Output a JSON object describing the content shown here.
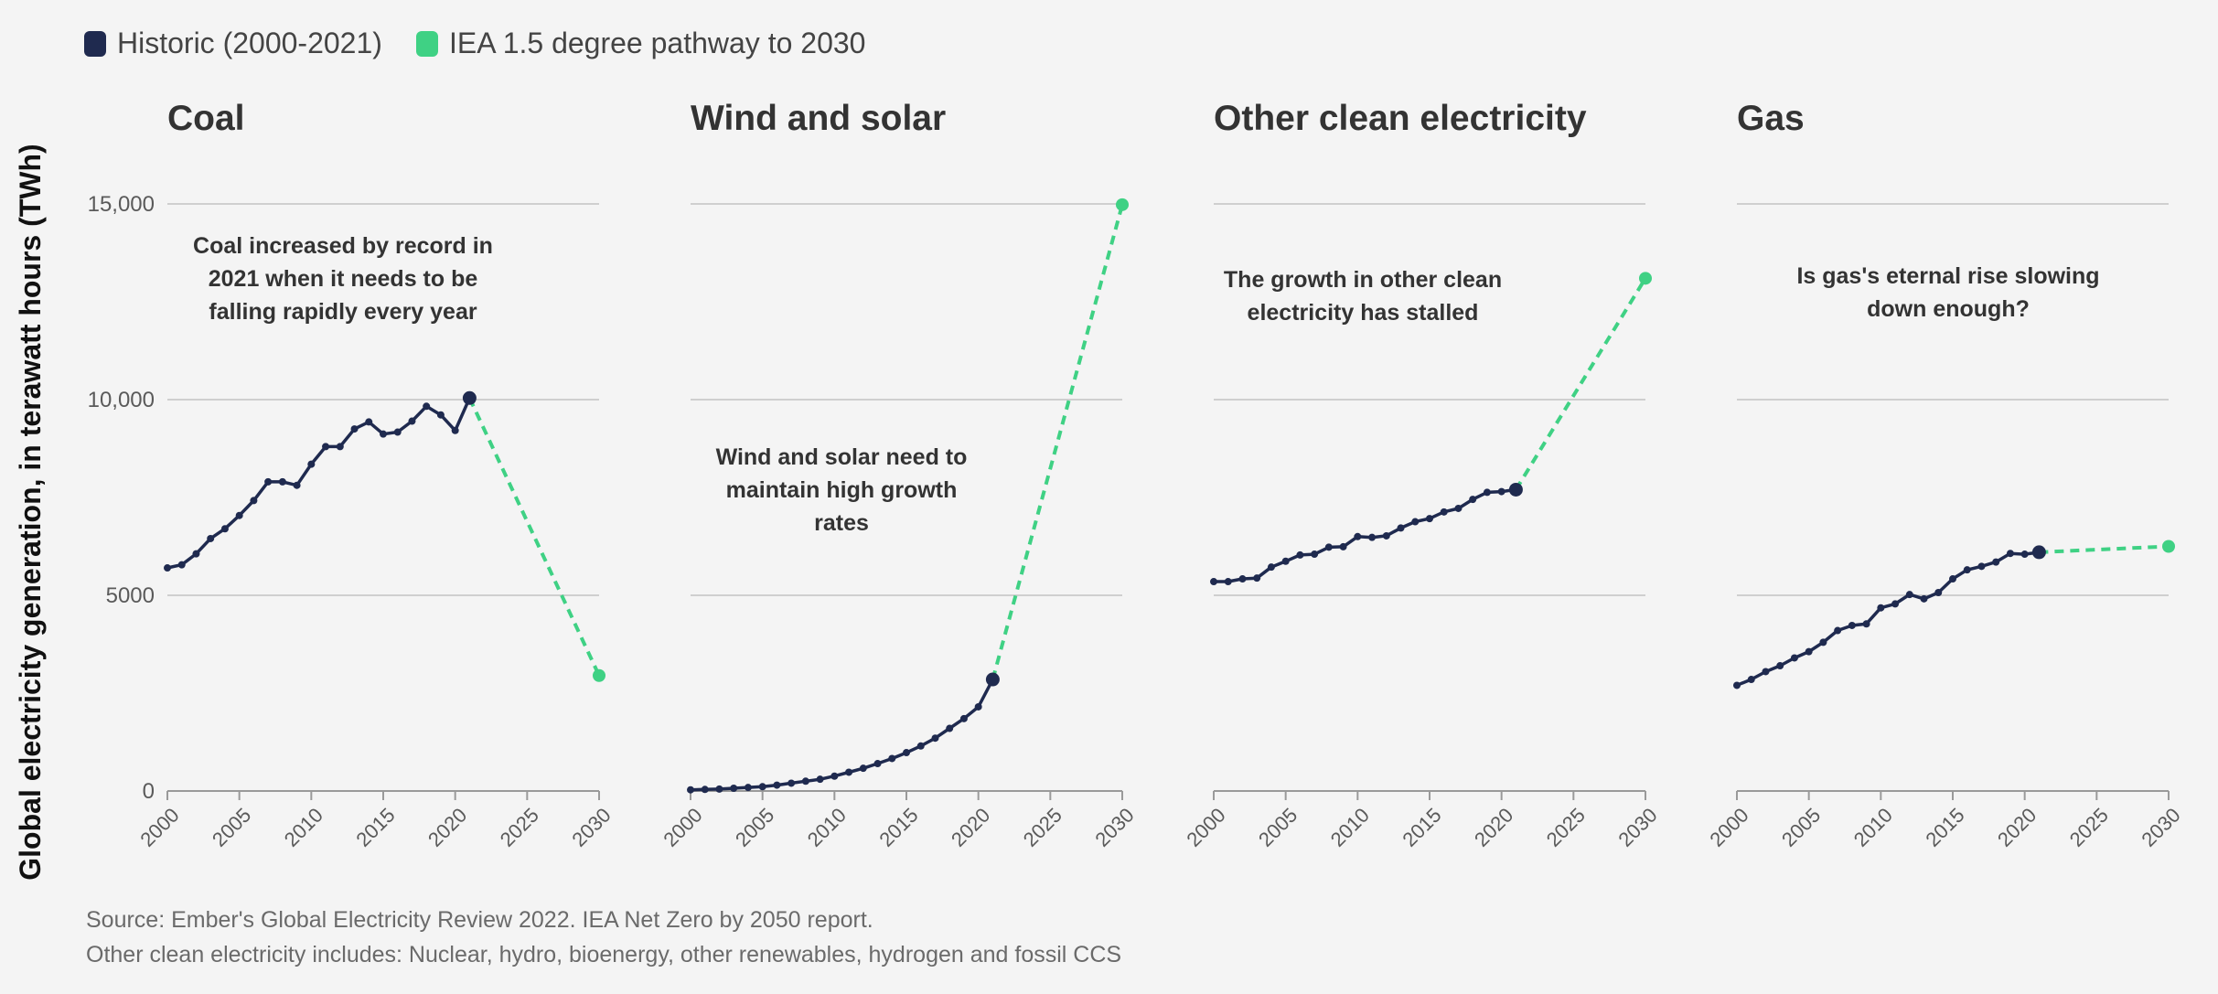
{
  "legend": [
    {
      "label": "Historic (2000-2021)",
      "color": "#1f2a4f"
    },
    {
      "label": "IEA 1.5 degree pathway to 2030",
      "color": "#3fd184"
    }
  ],
  "ylabel": "Global electricity generation, in terawatt hours (TWh)",
  "source_lines": [
    "Source: Ember's Global Electricity Review 2022. IEA Net Zero by 2050 report.",
    "Other clean electricity includes: Nuclear, hydro, bioenergy, other renewables, hydrogen and fossil CCS"
  ],
  "chart_data": [
    {
      "type": "line",
      "title": "Coal",
      "annotation": [
        "Coal increased by record in",
        "2021 when it needs to be",
        "falling rapidly every year"
      ],
      "xlim": [
        2000,
        2030
      ],
      "ylim": [
        0,
        15000
      ],
      "yticks": [
        {
          "value": 0,
          "label": "0"
        },
        {
          "value": 5000,
          "label": "5000"
        },
        {
          "value": 10000,
          "label": "10,000"
        },
        {
          "value": 15000,
          "label": "15,000"
        }
      ],
      "xticks": [
        "2000",
        "2005",
        "2010",
        "2015",
        "2020",
        "2025",
        "2030"
      ],
      "grid": true,
      "historic": {
        "x": [
          2000,
          2001,
          2002,
          2003,
          2004,
          2005,
          2006,
          2007,
          2008,
          2009,
          2010,
          2011,
          2012,
          2013,
          2014,
          2015,
          2016,
          2017,
          2018,
          2019,
          2020,
          2021
        ],
        "y": [
          5700,
          5780,
          6060,
          6450,
          6700,
          7040,
          7420,
          7900,
          7900,
          7810,
          8350,
          8800,
          8800,
          9250,
          9430,
          9120,
          9170,
          9450,
          9830,
          9610,
          9210,
          10040
        ]
      },
      "pathway": {
        "x": [
          2021,
          2030
        ],
        "y": [
          10040,
          2950
        ]
      }
    },
    {
      "type": "line",
      "title": "Wind and solar",
      "annotation": [
        "Wind and solar need to",
        "maintain high growth",
        "rates"
      ],
      "xlim": [
        2000,
        2030
      ],
      "ylim": [
        0,
        15000
      ],
      "yticks": [
        {
          "value": 0,
          "label": ""
        },
        {
          "value": 5000,
          "label": ""
        },
        {
          "value": 10000,
          "label": ""
        },
        {
          "value": 15000,
          "label": ""
        }
      ],
      "xticks": [
        "2000",
        "2005",
        "2010",
        "2015",
        "2020",
        "2025",
        "2030"
      ],
      "grid": true,
      "historic": {
        "x": [
          2000,
          2001,
          2002,
          2003,
          2004,
          2005,
          2006,
          2007,
          2008,
          2009,
          2010,
          2011,
          2012,
          2013,
          2014,
          2015,
          2016,
          2017,
          2018,
          2019,
          2020,
          2021
        ],
        "y": [
          30,
          40,
          50,
          70,
          90,
          110,
          150,
          200,
          250,
          300,
          380,
          480,
          580,
          700,
          830,
          980,
          1150,
          1350,
          1600,
          1850,
          2150,
          2850
        ]
      },
      "pathway": {
        "x": [
          2021,
          2030
        ],
        "y": [
          2850,
          14980
        ]
      }
    },
    {
      "type": "line",
      "title": "Other clean electricity",
      "annotation": [
        "The growth in other clean",
        "electricity has stalled"
      ],
      "xlim": [
        2000,
        2030
      ],
      "ylim": [
        0,
        15000
      ],
      "yticks": [
        {
          "value": 0,
          "label": ""
        },
        {
          "value": 5000,
          "label": ""
        },
        {
          "value": 10000,
          "label": ""
        },
        {
          "value": 15000,
          "label": ""
        }
      ],
      "xticks": [
        "2000",
        "2005",
        "2010",
        "2015",
        "2020",
        "2025",
        "2030"
      ],
      "grid": true,
      "historic": {
        "x": [
          2000,
          2001,
          2002,
          2003,
          2004,
          2005,
          2006,
          2007,
          2008,
          2009,
          2010,
          2011,
          2012,
          2013,
          2014,
          2015,
          2016,
          2017,
          2018,
          2019,
          2020,
          2021
        ],
        "y": [
          5350,
          5350,
          5420,
          5440,
          5720,
          5870,
          6030,
          6050,
          6230,
          6240,
          6500,
          6480,
          6520,
          6720,
          6880,
          6960,
          7130,
          7220,
          7450,
          7630,
          7650,
          7700
        ]
      },
      "pathway": {
        "x": [
          2021,
          2030
        ],
        "y": [
          7700,
          13100
        ]
      }
    },
    {
      "type": "line",
      "title": "Gas",
      "annotation": [
        "Is gas's eternal rise slowing",
        "down enough?"
      ],
      "xlim": [
        2000,
        2030
      ],
      "ylim": [
        0,
        15000
      ],
      "yticks": [
        {
          "value": 0,
          "label": ""
        },
        {
          "value": 5000,
          "label": ""
        },
        {
          "value": 10000,
          "label": ""
        },
        {
          "value": 15000,
          "label": ""
        }
      ],
      "xticks": [
        "2000",
        "2005",
        "2010",
        "2015",
        "2020",
        "2025",
        "2030"
      ],
      "grid": true,
      "historic": {
        "x": [
          2000,
          2001,
          2002,
          2003,
          2004,
          2005,
          2006,
          2007,
          2008,
          2009,
          2010,
          2011,
          2012,
          2013,
          2014,
          2015,
          2016,
          2017,
          2018,
          2019,
          2020,
          2021
        ],
        "y": [
          2700,
          2850,
          3050,
          3200,
          3400,
          3560,
          3800,
          4100,
          4230,
          4270,
          4680,
          4780,
          5020,
          4910,
          5070,
          5420,
          5650,
          5740,
          5850,
          6070,
          6050,
          6100
        ]
      },
      "pathway": {
        "x": [
          2021,
          2030
        ],
        "y": [
          6100,
          6250
        ]
      }
    }
  ]
}
